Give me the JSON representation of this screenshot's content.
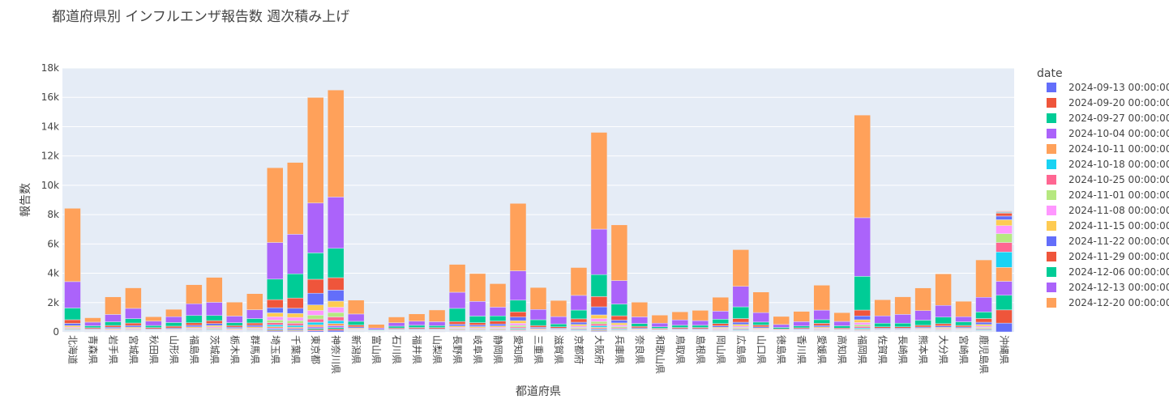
{
  "chart_data": {
    "type": "bar",
    "stacked": true,
    "title": "都道府県別 インフルエンザ報告数 週次積み上げ",
    "xlabel": "都道府県",
    "ylabel": "報告数",
    "ylim": [
      0,
      18000
    ],
    "yticks": [
      0,
      2000,
      4000,
      6000,
      8000,
      10000,
      12000,
      14000,
      16000,
      18000
    ],
    "ytick_labels": [
      "0",
      "2k",
      "4k",
      "6k",
      "8k",
      "10k",
      "12k",
      "14k",
      "16k",
      "18k"
    ],
    "legend_title": "date",
    "legend_position": "right",
    "grid": true,
    "categories": [
      "北海道",
      "青森県",
      "岩手県",
      "宮城県",
      "秋田県",
      "山形県",
      "福島県",
      "茨城県",
      "栃木県",
      "群馬県",
      "埼玉県",
      "千葉県",
      "東京都",
      "神奈川県",
      "新潟県",
      "富山県",
      "石川県",
      "福井県",
      "山梨県",
      "長野県",
      "岐阜県",
      "静岡県",
      "愛知県",
      "三重県",
      "滋賀県",
      "京都府",
      "大阪府",
      "兵庫県",
      "奈良県",
      "和歌山県",
      "鳥取県",
      "島根県",
      "岡山県",
      "広島県",
      "山口県",
      "徳島県",
      "香川県",
      "愛媛県",
      "高知県",
      "福岡県",
      "佐賀県",
      "長崎県",
      "熊本県",
      "大分県",
      "宮崎県",
      "鹿児島県",
      "沖縄県"
    ],
    "series": [
      {
        "name": "2024-09-13 00:00:00",
        "color": "#636efa",
        "values": [
          20,
          5,
          5,
          10,
          5,
          5,
          10,
          20,
          5,
          10,
          60,
          50,
          80,
          100,
          10,
          2,
          5,
          5,
          5,
          15,
          10,
          15,
          25,
          5,
          5,
          20,
          50,
          20,
          5,
          5,
          5,
          5,
          10,
          20,
          10,
          5,
          5,
          10,
          5,
          30,
          5,
          5,
          10,
          10,
          10,
          20,
          600
        ]
      },
      {
        "name": "2024-09-20 00:00:00",
        "color": "#ef553b",
        "values": [
          20,
          5,
          5,
          10,
          5,
          5,
          10,
          20,
          5,
          10,
          60,
          50,
          80,
          100,
          10,
          2,
          5,
          5,
          5,
          15,
          10,
          15,
          25,
          5,
          5,
          20,
          50,
          20,
          5,
          5,
          5,
          5,
          10,
          20,
          10,
          5,
          5,
          10,
          5,
          30,
          5,
          5,
          10,
          10,
          10,
          20,
          900
        ]
      },
      {
        "name": "2024-09-27 00:00:00",
        "color": "#00cc96",
        "values": [
          20,
          5,
          5,
          10,
          5,
          5,
          10,
          20,
          5,
          10,
          60,
          50,
          80,
          100,
          10,
          2,
          5,
          5,
          5,
          15,
          10,
          15,
          25,
          5,
          5,
          20,
          50,
          20,
          5,
          5,
          5,
          5,
          10,
          20,
          10,
          5,
          5,
          10,
          5,
          30,
          5,
          5,
          10,
          10,
          10,
          20,
          1000
        ]
      },
      {
        "name": "2024-10-04 00:00:00",
        "color": "#ab63fa",
        "values": [
          20,
          10,
          10,
          15,
          10,
          10,
          20,
          20,
          10,
          20,
          80,
          80,
          100,
          120,
          15,
          3,
          10,
          10,
          10,
          20,
          20,
          20,
          40,
          10,
          10,
          30,
          70,
          30,
          10,
          10,
          10,
          10,
          20,
          30,
          15,
          5,
          10,
          20,
          10,
          40,
          10,
          10,
          15,
          20,
          15,
          30,
          950
        ]
      },
      {
        "name": "2024-10-11 00:00:00",
        "color": "#ffa15a",
        "values": [
          30,
          10,
          20,
          25,
          10,
          10,
          25,
          30,
          20,
          25,
          100,
          90,
          140,
          150,
          20,
          5,
          10,
          10,
          10,
          30,
          25,
          30,
          60,
          15,
          15,
          40,
          90,
          50,
          15,
          10,
          10,
          10,
          25,
          40,
          20,
          10,
          10,
          25,
          10,
          60,
          15,
          15,
          20,
          25,
          20,
          40,
          950
        ]
      },
      {
        "name": "2024-10-18 00:00:00",
        "color": "#19d3f3",
        "values": [
          40,
          15,
          25,
          30,
          15,
          20,
          35,
          40,
          25,
          35,
          120,
          120,
          180,
          200,
          25,
          5,
          15,
          15,
          15,
          40,
          35,
          40,
          70,
          20,
          20,
          50,
          110,
          60,
          20,
          15,
          15,
          15,
          30,
          50,
          25,
          10,
          15,
          30,
          15,
          80,
          20,
          20,
          25,
          30,
          25,
          50,
          1050
        ]
      },
      {
        "name": "2024-10-25 00:00:00",
        "color": "#ff6692",
        "values": [
          50,
          20,
          30,
          40,
          20,
          25,
          40,
          50,
          30,
          40,
          150,
          150,
          220,
          250,
          30,
          10,
          20,
          20,
          20,
          50,
          45,
          50,
          90,
          30,
          25,
          60,
          130,
          70,
          25,
          20,
          20,
          20,
          40,
          60,
          30,
          15,
          20,
          40,
          20,
          100,
          25,
          25,
          30,
          35,
          30,
          60,
          650
        ]
      },
      {
        "name": "2024-11-01 00:00:00",
        "color": "#b6e880",
        "values": [
          60,
          25,
          35,
          45,
          25,
          30,
          50,
          60,
          35,
          50,
          180,
          180,
          260,
          300,
          35,
          10,
          20,
          25,
          25,
          60,
          55,
          60,
          110,
          35,
          30,
          70,
          160,
          90,
          30,
          20,
          25,
          25,
          45,
          70,
          35,
          20,
          25,
          50,
          20,
          120,
          30,
          30,
          35,
          45,
          35,
          70,
          600
        ]
      },
      {
        "name": "2024-11-08 00:00:00",
        "color": "#ff97ff",
        "values": [
          70,
          30,
          45,
          60,
          30,
          40,
          60,
          80,
          45,
          60,
          220,
          220,
          320,
          360,
          45,
          10,
          25,
          30,
          30,
          70,
          65,
          75,
          140,
          45,
          35,
          90,
          200,
          110,
          40,
          25,
          30,
          30,
          55,
          90,
          45,
          20,
          30,
          60,
          25,
          150,
          35,
          35,
          45,
          55,
          45,
          90,
          550
        ]
      },
      {
        "name": "2024-11-15 00:00:00",
        "color": "#fecb52",
        "values": [
          100,
          40,
          60,
          80,
          40,
          50,
          80,
          100,
          60,
          80,
          270,
          270,
          380,
          420,
          60,
          15,
          35,
          40,
          40,
          90,
          85,
          90,
          180,
          60,
          45,
          110,
          250,
          140,
          50,
          30,
          40,
          40,
          70,
          110,
          60,
          25,
          35,
          80,
          35,
          190,
          45,
          45,
          55,
          70,
          55,
          110,
          400
        ]
      },
      {
        "name": "2024-11-22 00:00:00",
        "color": "#636efa",
        "values": [
          150,
          50,
          80,
          110,
          50,
          70,
          110,
          130,
          80,
          110,
          350,
          350,
          800,
          750,
          80,
          20,
          50,
          55,
          50,
          120,
          110,
          130,
          250,
          80,
          60,
          150,
          550,
          190,
          70,
          40,
          55,
          55,
          100,
          150,
          80,
          35,
          50,
          100,
          45,
          260,
          60,
          60,
          75,
          100,
          75,
          150,
          250
        ]
      },
      {
        "name": "2024-11-29 00:00:00",
        "color": "#ef553b",
        "values": [
          250,
          70,
          120,
          170,
          80,
          120,
          170,
          200,
          110,
          160,
          550,
          700,
          950,
          850,
          130,
          30,
          70,
          80,
          80,
          180,
          160,
          200,
          350,
          120,
          90,
          230,
          700,
          300,
          100,
          60,
          80,
          80,
          150,
          250,
          130,
          50,
          70,
          150,
          70,
          400,
          90,
          90,
          120,
          150,
          110,
          250,
          200
        ]
      },
      {
        "name": "2024-12-06 00:00:00",
        "color": "#00cc96",
        "values": [
          800,
          130,
          250,
          300,
          140,
          250,
          500,
          350,
          200,
          300,
          1400,
          1650,
          1800,
          2000,
          250,
          50,
          120,
          150,
          130,
          900,
          450,
          350,
          800,
          400,
          200,
          600,
          1500,
          800,
          200,
          100,
          150,
          150,
          300,
          800,
          200,
          100,
          120,
          250,
          150,
          2300,
          250,
          250,
          350,
          450,
          250,
          450,
          50
        ]
      },
      {
        "name": "2024-12-13 00:00:00",
        "color": "#ab63fa",
        "values": [
          1800,
          250,
          500,
          700,
          300,
          400,
          800,
          900,
          450,
          600,
          2500,
          2700,
          3400,
          3500,
          500,
          100,
          230,
          280,
          270,
          1100,
          1000,
          600,
          2000,
          700,
          500,
          1000,
          3100,
          1600,
          450,
          250,
          370,
          320,
          550,
          1400,
          650,
          200,
          300,
          650,
          300,
          4000,
          500,
          600,
          650,
          800,
          350,
          1000,
          50
        ]
      },
      {
        "name": "2024-12-20 00:00:00",
        "color": "#ffa15a",
        "values": [
          5000,
          300,
          1200,
          1400,
          300,
          500,
          1300,
          1700,
          950,
          1100,
          5100,
          4900,
          7200,
          7300,
          950,
          250,
          400,
          500,
          800,
          1900,
          1900,
          1600,
          4600,
          1500,
          1100,
          1900,
          6600,
          3800,
          1000,
          550,
          550,
          700,
          950,
          2500,
          1400,
          550,
          700,
          1700,
          600,
          7000,
          1100,
          1200,
          1550,
          2150,
          1050,
          2550,
          50
        ]
      }
    ]
  }
}
